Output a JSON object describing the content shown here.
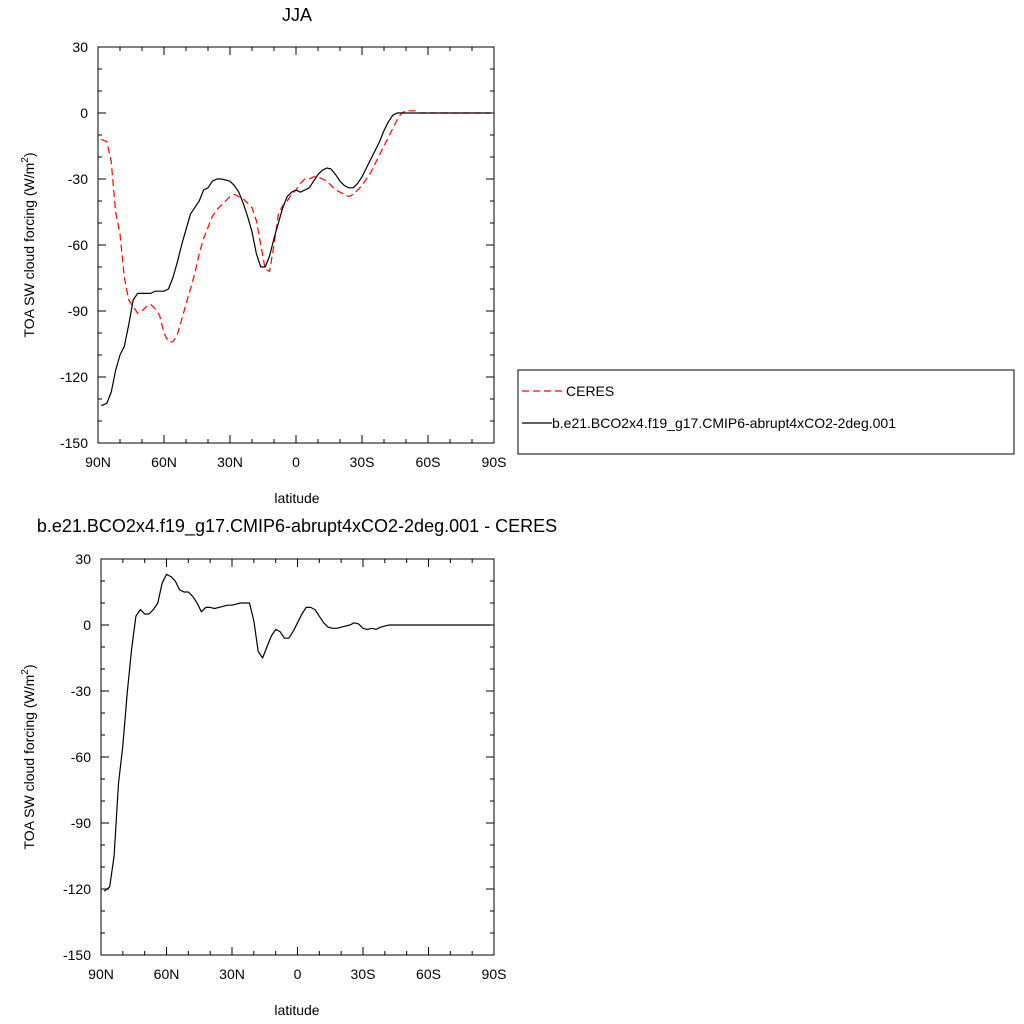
{
  "chart_data": [
    {
      "type": "line",
      "title": "JJA",
      "xlabel": "latitude",
      "ylabel": "TOA SW cloud forcing (W/m",
      "ylabel_sup": "2",
      "ylabel_end": ")",
      "x_ticks": [
        {
          "value": 90,
          "label": "90N"
        },
        {
          "value": 60,
          "label": "60N"
        },
        {
          "value": 30,
          "label": "30N"
        },
        {
          "value": 0,
          "label": "0"
        },
        {
          "value": -30,
          "label": "30S"
        },
        {
          "value": -60,
          "label": "60S"
        },
        {
          "value": -90,
          "label": "90S"
        }
      ],
      "y_ticks": [
        30,
        0,
        -30,
        -60,
        -90,
        -120,
        -150
      ],
      "xlim": [
        90,
        -90
      ],
      "ylim": [
        -150,
        30
      ],
      "grid": false,
      "legend_position": "right",
      "series": [
        {
          "name": "CERES",
          "color": "#ff0000",
          "dash": "dashed",
          "x": [
            88.5,
            86,
            84,
            82,
            80,
            78,
            76,
            74,
            72,
            70,
            68,
            66,
            64,
            62,
            60,
            58,
            56,
            54,
            52,
            50,
            48,
            46,
            44,
            42,
            40,
            38,
            36,
            34,
            32,
            30,
            28,
            26,
            24,
            22,
            20,
            18,
            16,
            14,
            12,
            10,
            8,
            6,
            4,
            2,
            0,
            -2,
            -4,
            -6,
            -8,
            -10,
            -12,
            -14,
            -16,
            -18,
            -20,
            -22,
            -24,
            -26,
            -28,
            -30,
            -32,
            -34,
            -36,
            -38,
            -40,
            -42,
            -44,
            -46,
            -48,
            -50,
            -52,
            -54,
            -56,
            -58,
            -60,
            -62,
            -64,
            -66,
            -68,
            -70,
            -72,
            -75,
            -80,
            -85,
            -88.5
          ],
          "y": [
            -12,
            -13,
            -22,
            -45,
            -55,
            -75,
            -85,
            -88,
            -91,
            -90,
            -88,
            -87,
            -89,
            -92,
            -100,
            -104,
            -104,
            -101,
            -94,
            -87,
            -80,
            -73,
            -64,
            -57,
            -52,
            -47,
            -44,
            -42,
            -40,
            -38,
            -37,
            -38,
            -39,
            -41,
            -43,
            -49,
            -60,
            -71,
            -72,
            -60,
            -46,
            -42,
            -40,
            -37,
            -35,
            -32,
            -30,
            -30,
            -29,
            -29,
            -30,
            -31,
            -33,
            -35,
            -36,
            -37,
            -38,
            -37,
            -35,
            -33,
            -30,
            -27,
            -23,
            -19,
            -15,
            -11,
            -7,
            -3,
            0,
            1,
            1,
            1,
            0,
            0,
            0,
            0,
            0,
            0,
            0,
            0,
            0,
            0,
            0,
            0,
            0
          ]
        },
        {
          "name": "b.e21.BCO2x4.f19_g17.CMIP6-abrupt4xCO2-2deg.001",
          "color": "#000000",
          "dash": "solid",
          "x": [
            88.5,
            86,
            84,
            82,
            80,
            78,
            76,
            74,
            72,
            70,
            68,
            66,
            64,
            62,
            60,
            58,
            56,
            54,
            52,
            50,
            48,
            46,
            44,
            42,
            40,
            38,
            36,
            34,
            32,
            30,
            28,
            26,
            24,
            22,
            20,
            18,
            16,
            14,
            12,
            10,
            8,
            6,
            4,
            2,
            0,
            -2,
            -4,
            -6,
            -8,
            -10,
            -12,
            -14,
            -16,
            -18,
            -20,
            -22,
            -24,
            -26,
            -28,
            -30,
            -32,
            -34,
            -36,
            -38,
            -40,
            -42,
            -44,
            -46,
            -48,
            -50,
            -52,
            -54,
            -56,
            -58,
            -60,
            -62,
            -64,
            -66,
            -68,
            -70,
            -72,
            -75,
            -80,
            -85,
            -88.5
          ],
          "y": [
            -133,
            -132,
            -127,
            -117,
            -110,
            -106,
            -96,
            -85,
            -82,
            -82,
            -82,
            -82,
            -81,
            -81,
            -81,
            -80,
            -75,
            -68,
            -60,
            -53,
            -46,
            -43,
            -40,
            -35,
            -34,
            -31,
            -30,
            -30,
            -30.5,
            -31,
            -33,
            -36,
            -41,
            -47,
            -54,
            -64,
            -70,
            -70,
            -65,
            -57,
            -50,
            -43,
            -38,
            -36,
            -35,
            -36,
            -35,
            -34,
            -31,
            -28,
            -26,
            -25,
            -25.5,
            -28,
            -31,
            -33,
            -34,
            -34,
            -32,
            -29,
            -25,
            -21,
            -17,
            -13,
            -8,
            -4,
            -1,
            0,
            0,
            0,
            0,
            0,
            0,
            0,
            0,
            0,
            0,
            0,
            0,
            0,
            0,
            0,
            0,
            0,
            0
          ]
        }
      ]
    },
    {
      "type": "line",
      "title": "b.e21.BCO2x4.f19_g17.CMIP6-abrupt4xCO2-2deg.001 - CERES",
      "xlabel": "latitude",
      "ylabel": "TOA SW cloud forcing (W/m",
      "ylabel_sup": "2",
      "ylabel_end": ")",
      "x_ticks": [
        {
          "value": 90,
          "label": "90N"
        },
        {
          "value": 60,
          "label": "60N"
        },
        {
          "value": 30,
          "label": "30N"
        },
        {
          "value": 0,
          "label": "0"
        },
        {
          "value": -30,
          "label": "30S"
        },
        {
          "value": -60,
          "label": "60S"
        },
        {
          "value": -90,
          "label": "90S"
        }
      ],
      "y_ticks": [
        30,
        0,
        -30,
        -60,
        -90,
        -120,
        -150
      ],
      "xlim": [
        90,
        -90
      ],
      "ylim": [
        -150,
        30
      ],
      "grid": false,
      "series": [
        {
          "color": "#000000",
          "dash": "solid",
          "x": [
            88.5,
            86,
            84,
            82,
            80,
            78,
            76,
            74,
            72,
            70,
            68,
            66,
            64,
            62,
            60,
            58,
            56,
            54,
            52,
            50,
            48,
            46,
            44,
            42,
            40,
            38,
            36,
            34,
            32,
            30,
            28,
            26,
            24,
            22,
            20,
            18,
            16,
            14,
            12,
            10,
            8,
            6,
            4,
            2,
            0,
            -2,
            -4,
            -6,
            -8,
            -10,
            -12,
            -14,
            -16,
            -18,
            -20,
            -22,
            -24,
            -26,
            -28,
            -30,
            -32,
            -34,
            -36,
            -38,
            -40,
            -42,
            -44,
            -46,
            -48,
            -50,
            -52,
            -54,
            -56,
            -58,
            -60,
            -62,
            -64,
            -66,
            -68,
            -70,
            -72,
            -75,
            -80,
            -85,
            -88.5
          ],
          "y": [
            -121,
            -119,
            -105,
            -72,
            -55,
            -31,
            -11,
            4,
            7,
            5,
            5,
            7,
            10,
            19,
            23,
            22,
            20,
            16,
            15,
            15,
            13,
            10,
            6,
            8,
            8,
            7.5,
            8,
            8.5,
            9,
            9,
            9.5,
            10,
            10,
            10,
            2,
            -12,
            -15,
            -10,
            -5,
            -2,
            -3,
            -6,
            -6,
            -3,
            1,
            5,
            8,
            8,
            7,
            4,
            1,
            -1,
            -1.5,
            -1.5,
            -1,
            -0.5,
            0,
            1,
            0.5,
            -1.5,
            -2,
            -1.5,
            -2,
            -1,
            -0.5,
            0,
            0,
            0,
            0,
            0,
            0,
            0,
            0,
            0,
            0,
            0,
            0,
            0,
            0,
            0,
            0,
            0,
            0,
            0,
            0
          ]
        }
      ]
    }
  ]
}
